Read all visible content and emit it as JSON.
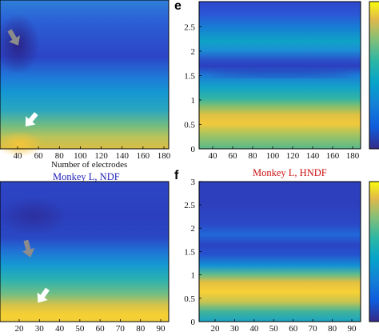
{
  "chart_data": [
    {
      "type": "heatmap",
      "panel": "top-left",
      "x_ticks": [
        "40",
        "60",
        "80",
        "100",
        "120",
        "140",
        "160",
        "180"
      ],
      "xlabel": "Number of electrodes",
      "title": "Monkey L, NDF",
      "title_color": "#1f1fb8",
      "annotations": [
        {
          "symbol": "arrow",
          "color": "#8c8c8c",
          "direction": "down"
        },
        {
          "symbol": "arrow",
          "color": "#ffffff",
          "direction": "down-left"
        }
      ]
    },
    {
      "type": "heatmap",
      "panel": "e",
      "panel_letter": "e",
      "y_ticks": [
        "0",
        "0.5",
        "1",
        "1.5",
        "2",
        "2.5"
      ],
      "x_ticks": [
        "40",
        "60",
        "80",
        "100",
        "120",
        "140",
        "160",
        "180"
      ]
    },
    {
      "type": "heatmap",
      "panel": "bottom-left",
      "x_ticks": [
        "20",
        "30",
        "40",
        "50",
        "60",
        "70",
        "80",
        "90"
      ],
      "annotations": [
        {
          "symbol": "arrow",
          "color": "#8c8c8c",
          "direction": "down"
        },
        {
          "symbol": "arrow",
          "color": "#ffffff",
          "direction": "down-left"
        }
      ]
    },
    {
      "type": "heatmap",
      "panel": "f",
      "panel_letter": "f",
      "title": "Monkey L, HNDF",
      "title_color": "#cc1111",
      "y_ticks": [
        "0",
        "0.5",
        "1",
        "1.5",
        "2",
        "2.5",
        "3"
      ],
      "x_ticks": [
        "20",
        "30",
        "40",
        "50",
        "60",
        "70",
        "80",
        "90"
      ]
    }
  ],
  "colormap": "parula",
  "colors": {
    "dark_blue": "#352a87",
    "blue": "#1f5fd3",
    "cyan_blue": "#1496d4",
    "teal": "#2ab4b2",
    "green": "#7cbf7e",
    "yellow": "#f5d33a",
    "bright_yellow": "#f9fb0e"
  }
}
